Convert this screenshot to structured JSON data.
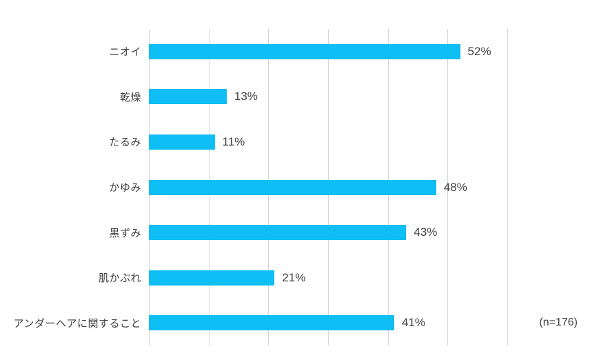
{
  "chart_data": {
    "type": "bar",
    "orientation": "horizontal",
    "title": "",
    "categories": [
      "ニオイ",
      "乾燥",
      "たるみ",
      "かゆみ",
      "黒ずみ",
      "肌かぶれ",
      "アンダーヘアに関すること"
    ],
    "values": [
      52,
      13,
      11,
      48,
      43,
      21,
      41
    ],
    "value_labels": [
      "52%",
      "13%",
      "11%",
      "48%",
      "43%",
      "21%",
      "41%"
    ],
    "xlabel": "",
    "ylabel": "",
    "xlim": [
      0,
      60
    ],
    "gridline_interval": 10,
    "grid": true,
    "legend": false,
    "annotation": "(n=176)",
    "colors": {
      "bar": "#0fbef5",
      "gridline": "#d6d6d6",
      "text": "#404040",
      "background": "#ffffff"
    }
  }
}
